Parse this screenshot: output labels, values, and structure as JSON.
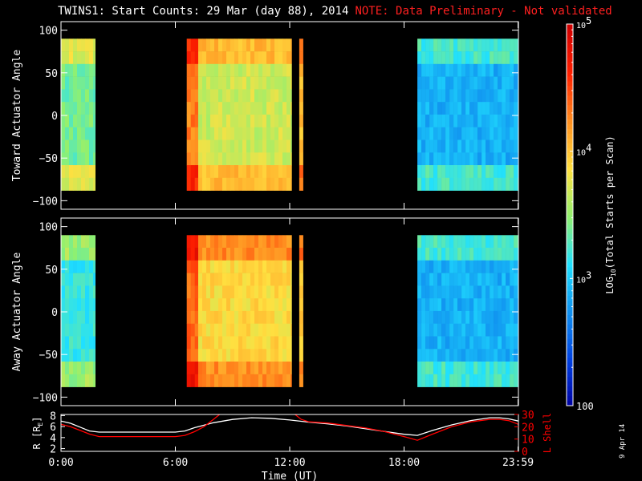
{
  "title": {
    "main": "TWINS1: Start Counts: 29 Mar (day  88), 2014",
    "note": "NOTE: Data Preliminary - Not validated"
  },
  "side_label": "9 Apr 14",
  "colors": {
    "background": "#000000",
    "axis": "#ffffff",
    "note": "#ff2020",
    "r_line": "#ffffff",
    "l_line": "#ff0000",
    "colormap": [
      "#0000a0",
      "#0040e0",
      "#1090f0",
      "#20e0ff",
      "#90f070",
      "#ffe040",
      "#ff9020",
      "#ff2000",
      "#d00000"
    ]
  },
  "chart_data": [
    {
      "type": "heatmap",
      "panel": "top",
      "ylabel": "Toward Actuator Angle",
      "x_range_hours": [
        0,
        24
      ],
      "ylim": [
        -110,
        110
      ],
      "yticks": [
        100,
        50,
        0,
        -50,
        -100
      ],
      "data_intervals_hours": [
        [
          0.0,
          1.8
        ],
        [
          6.6,
          12.1
        ],
        [
          12.5,
          12.7
        ],
        [
          18.7,
          24.0
        ]
      ],
      "angle_range": [
        -88,
        90
      ],
      "levels_summary": [
        {
          "hours": [
            0.0,
            1.8
          ],
          "log10_level": 3.4
        },
        {
          "hours": [
            6.6,
            7.2
          ],
          "log10_level": 4.3
        },
        {
          "hours": [
            7.2,
            12.1
          ],
          "log10_level": 3.7
        },
        {
          "hours": [
            12.5,
            12.7
          ],
          "log10_level": 4.0
        },
        {
          "hours": [
            18.7,
            24.0
          ],
          "log10_level": 2.9
        }
      ]
    },
    {
      "type": "heatmap",
      "panel": "middle",
      "ylabel": "Away Actuator Angle",
      "x_range_hours": [
        0,
        24
      ],
      "ylim": [
        -110,
        110
      ],
      "yticks": [
        100,
        50,
        0,
        -50,
        -100
      ],
      "data_intervals_hours": [
        [
          0.0,
          1.8
        ],
        [
          6.6,
          12.1
        ],
        [
          12.5,
          12.7
        ],
        [
          18.7,
          24.0
        ]
      ],
      "angle_range": [
        -88,
        90
      ],
      "levels_summary": [
        {
          "hours": [
            0.0,
            1.8
          ],
          "log10_level": 3.2
        },
        {
          "hours": [
            6.6,
            7.2
          ],
          "log10_level": 4.4
        },
        {
          "hours": [
            7.2,
            12.1
          ],
          "log10_level": 3.9
        },
        {
          "hours": [
            12.5,
            12.7
          ],
          "log10_level": 4.0
        },
        {
          "hours": [
            18.7,
            24.0
          ],
          "log10_level": 2.9
        }
      ]
    },
    {
      "type": "line",
      "panel": "bottom",
      "xlabel": "Time (UT)",
      "xticks": [
        "0:00",
        "6:00",
        "12:00",
        "18:00",
        "23:59"
      ],
      "xtick_hours": [
        0,
        6,
        12,
        18,
        23.98
      ],
      "ylabel_left": "R [R",
      "ylabel_left_sub": "E",
      "ylabel_left_end": "]",
      "ylim_left": [
        1.5,
        8.2
      ],
      "yticks_left": [
        2,
        4,
        6,
        8
      ],
      "ylabel_right": "L Shell",
      "ylim_right": [
        0,
        30
      ],
      "yticks_right": [
        0,
        10,
        20,
        30
      ],
      "series": [
        {
          "axis": "left",
          "color": "white",
          "x": [
            0,
            0.5,
            1.0,
            1.5,
            2.0,
            3.0,
            4.0,
            5.0,
            6.0,
            6.5,
            7.0,
            8.0,
            9.0,
            10.0,
            11.0,
            12.0,
            13.0,
            14.0,
            15.0,
            16.0,
            17.0,
            18.0,
            18.7,
            19.5,
            20.5,
            21.5,
            22.5,
            23.0,
            23.5,
            24.0
          ],
          "y": [
            7.0,
            6.6,
            5.9,
            5.2,
            5.0,
            5.0,
            5.0,
            5.0,
            5.0,
            5.2,
            5.8,
            6.7,
            7.3,
            7.6,
            7.5,
            7.2,
            6.8,
            6.5,
            6.1,
            5.6,
            5.1,
            4.6,
            4.4,
            5.3,
            6.3,
            7.1,
            7.6,
            7.6,
            7.4,
            7.0
          ]
        },
        {
          "axis": "right",
          "color": "red",
          "x": [
            0,
            0.5,
            1.0,
            1.5,
            2.0,
            3.0,
            4.0,
            5.0,
            6.0,
            6.5,
            7.0,
            7.5,
            8.0,
            8.4,
            12.2,
            12.6,
            13.0,
            14.0,
            15.0,
            16.0,
            17.0,
            18.0,
            18.7,
            19.5,
            20.5,
            21.5,
            22.5,
            23.0,
            23.5,
            24.0
          ],
          "y": [
            22,
            20,
            17,
            14,
            12,
            12,
            12,
            12,
            12,
            13,
            16,
            20,
            26,
            31,
            31,
            26,
            24,
            23,
            21,
            19,
            16,
            12,
            9,
            14,
            20,
            24,
            26,
            26,
            25,
            22
          ]
        }
      ]
    },
    {
      "type": "colorbar",
      "label": "LOG10(Total Starts per Scan)",
      "label_main": "LOG",
      "label_sub": "10",
      "label_rest": "(Total Starts per Scan)",
      "range_log10": [
        2,
        5
      ],
      "tick_labels": [
        "10^5",
        "10^4",
        "10^3",
        "100"
      ],
      "tick_values_log10": [
        5,
        4,
        3,
        2
      ]
    }
  ]
}
